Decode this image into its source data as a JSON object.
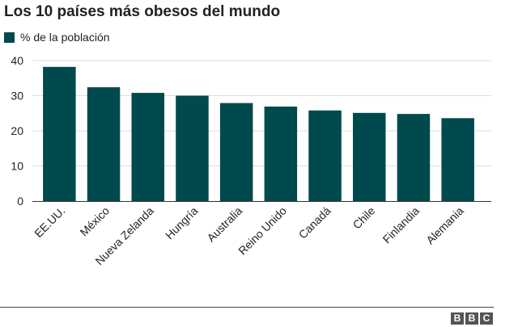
{
  "colors": {
    "bar": "#004a4d",
    "grid": "#dddddd",
    "axis": "#333333",
    "text": "#222222"
  },
  "logo": {
    "blocks": [
      "B",
      "B",
      "C"
    ]
  },
  "chart_data": {
    "type": "bar",
    "title": "Los 10 países más obesos del mundo",
    "xlabel": "",
    "ylabel": "",
    "legend": "top-left",
    "grid": true,
    "ylim": [
      0,
      40
    ],
    "yticks": [
      0,
      10,
      20,
      30,
      40
    ],
    "categories": [
      "EE.UU.",
      "México",
      "Nueva Zelanda",
      "Hungría",
      "Australia",
      "Reino Unido",
      "Canadá",
      "Chile",
      "Finlandia",
      "Alemania"
    ],
    "series": [
      {
        "name": "% de la población",
        "values": [
          38.2,
          32.4,
          30.8,
          30.0,
          27.9,
          26.9,
          25.8,
          25.1,
          24.8,
          23.6
        ]
      }
    ]
  }
}
